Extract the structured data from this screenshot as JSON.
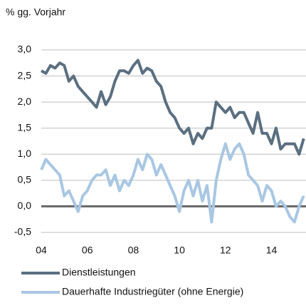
{
  "chart_data": {
    "type": "line",
    "y_axis_label": "% gg. Vorjahr",
    "x": [
      2004,
      2004.2,
      2004.4,
      2004.6,
      2004.8,
      2005,
      2005.2,
      2005.4,
      2005.6,
      2005.8,
      2006,
      2006.2,
      2006.4,
      2006.6,
      2006.8,
      2007,
      2007.2,
      2007.4,
      2007.6,
      2007.8,
      2008,
      2008.2,
      2008.4,
      2008.6,
      2008.8,
      2009,
      2009.2,
      2009.4,
      2009.6,
      2009.8,
      2010,
      2010.2,
      2010.4,
      2010.6,
      2010.8,
      2011,
      2011.2,
      2011.4,
      2011.6,
      2011.8,
      2012,
      2012.2,
      2012.4,
      2012.6,
      2012.8,
      2013,
      2013.2,
      2013.4,
      2013.6,
      2013.8,
      2014,
      2014.2,
      2014.4,
      2014.6,
      2014.8,
      2015,
      2015.2,
      2015.4
    ],
    "series": [
      {
        "name": "Dienstleistungen",
        "color": "#5b6f80",
        "values": [
          2.6,
          2.55,
          2.7,
          2.65,
          2.75,
          2.7,
          2.4,
          2.5,
          2.3,
          2.2,
          2.1,
          2.0,
          1.9,
          2.2,
          1.95,
          2.1,
          2.4,
          2.6,
          2.6,
          2.55,
          2.7,
          2.8,
          2.55,
          2.65,
          2.6,
          2.4,
          2.3,
          2.0,
          1.8,
          1.7,
          1.5,
          1.4,
          1.5,
          1.2,
          1.4,
          1.3,
          1.5,
          1.5,
          2.0,
          1.9,
          1.8,
          1.9,
          1.7,
          1.8,
          1.8,
          1.6,
          1.4,
          1.8,
          1.4,
          1.4,
          1.2,
          1.5,
          1.1,
          1.2,
          1.2,
          1.2,
          1.0,
          1.3
        ]
      },
      {
        "name": "Dauerhafte Industriegüter (ohne Energie)",
        "color": "#a9c7e3",
        "values": [
          0.7,
          0.9,
          0.8,
          0.7,
          0.6,
          0.2,
          0.3,
          0.1,
          -0.1,
          0.2,
          0.3,
          0.5,
          0.6,
          0.6,
          0.7,
          0.4,
          0.6,
          0.3,
          0.5,
          0.4,
          0.6,
          0.9,
          0.7,
          1.0,
          0.9,
          0.6,
          0.8,
          0.6,
          0.4,
          0.2,
          -0.1,
          0.3,
          0.5,
          0.2,
          0.5,
          0.1,
          0.4,
          -0.3,
          0.5,
          0.9,
          1.2,
          0.9,
          1.1,
          1.2,
          1.0,
          0.6,
          0.5,
          0.4,
          0.1,
          0.4,
          0.3,
          0.0,
          0.1,
          0.0,
          -0.2,
          -0.3,
          0.0,
          0.2
        ]
      }
    ],
    "xlim": [
      2004,
      2015.5
    ],
    "xticks": [
      {
        "value": 2004,
        "label": "04"
      },
      {
        "value": 2006,
        "label": "06"
      },
      {
        "value": 2008,
        "label": "08"
      },
      {
        "value": 2010,
        "label": "10"
      },
      {
        "value": 2012,
        "label": "12"
      },
      {
        "value": 2014,
        "label": "14"
      }
    ],
    "ylim": [
      -0.5,
      3.0
    ],
    "yticks": [
      {
        "value": -0.5,
        "label": "-0,5"
      },
      {
        "value": 0,
        "label": "0,0"
      },
      {
        "value": 0.5,
        "label": "0,5"
      },
      {
        "value": 1,
        "label": "1,0"
      },
      {
        "value": 1.5,
        "label": "1,5"
      },
      {
        "value": 2,
        "label": "2,0"
      },
      {
        "value": 2.5,
        "label": "2,5"
      },
      {
        "value": 3,
        "label": "3,0"
      }
    ],
    "grid": true,
    "legend": "bottom"
  }
}
